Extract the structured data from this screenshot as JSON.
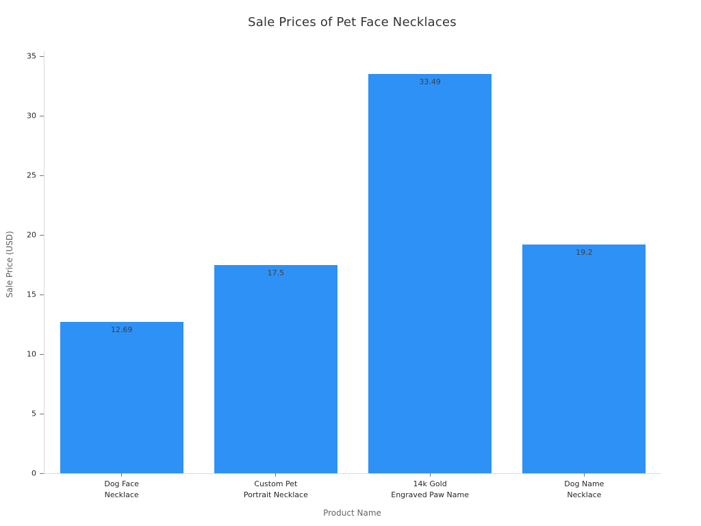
{
  "chart_data": {
    "type": "bar",
    "title": "Sale Prices of Pet Face Necklaces",
    "xlabel": "Product Name",
    "ylabel": "Sale Price (USD)",
    "categories": [
      "Dog Face\nNecklace",
      "Custom Pet\nPortrait Necklace",
      "14k Gold\nEngraved Paw Name",
      "Dog Name\nNecklace"
    ],
    "values": [
      12.69,
      17.5,
      33.49,
      19.2
    ],
    "value_labels": [
      "12.69",
      "17.5",
      "33.49",
      "19.2"
    ],
    "ylim": [
      0,
      35
    ],
    "yticks": [
      0,
      5,
      10,
      15,
      20,
      25,
      30,
      35
    ],
    "grid": false,
    "legend": false,
    "bar_width_fraction": 0.8,
    "colors": {
      "bar": "#2e91f5",
      "title_text": "#333333",
      "tick_text": "#262626",
      "axis_title_text": "#666666",
      "axis_line": "#d9d9d9",
      "tick_mark": "#737373",
      "value_label_text": "#3f3f3f",
      "background": "#ffffff"
    }
  }
}
